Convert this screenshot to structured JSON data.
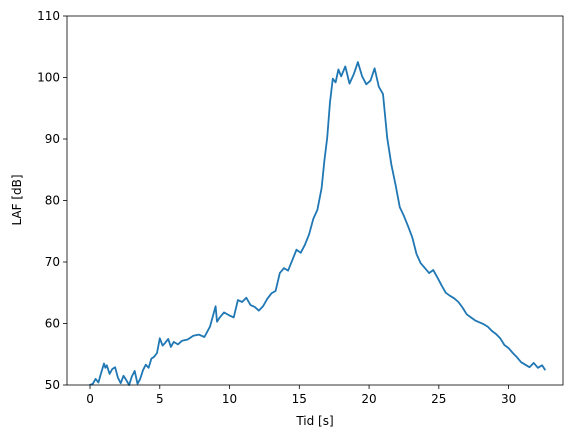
{
  "chart_data": {
    "type": "line",
    "xlabel": "Tid [s]",
    "ylabel": "LAF [dB]",
    "xlim": [
      -1.65,
      33.9
    ],
    "ylim": [
      50,
      110
    ],
    "xticks": [
      0,
      5,
      10,
      15,
      20,
      25,
      30
    ],
    "yticks": [
      50,
      60,
      70,
      80,
      90,
      100,
      110
    ],
    "grid": false,
    "line_color": "#1f77b4",
    "series": [
      {
        "x": [
          0,
          0.2,
          0.4,
          0.6,
          0.8,
          1.0,
          1.1,
          1.2,
          1.4,
          1.6,
          1.8,
          2.0,
          2.2,
          2.4,
          2.6,
          2.8,
          3.0,
          3.2,
          3.4,
          3.6,
          3.8,
          4.0,
          4.2,
          4.4,
          4.6,
          4.8,
          5.0,
          5.2,
          5.4,
          5.6,
          5.8,
          6.0,
          6.3,
          6.6,
          7.0,
          7.4,
          7.8,
          8.2,
          8.6,
          9.0,
          9.1,
          9.3,
          9.6,
          10.0,
          10.3,
          10.6,
          10.9,
          11.2,
          11.5,
          11.8,
          12.1,
          12.4,
          12.7,
          13.0,
          13.3,
          13.6,
          13.9,
          14.2,
          14.5,
          14.8,
          15.1,
          15.4,
          15.7,
          16.0,
          16.3,
          16.6,
          16.8,
          17.0,
          17.2,
          17.4,
          17.6,
          17.8,
          18.0,
          18.3,
          18.6,
          18.9,
          19.2,
          19.5,
          19.8,
          20.1,
          20.4,
          20.7,
          21.0,
          21.3,
          21.6,
          21.9,
          22.2,
          22.5,
          22.8,
          23.1,
          23.4,
          23.7,
          24.0,
          24.3,
          24.6,
          24.9,
          25.2,
          25.5,
          25.8,
          26.1,
          26.4,
          26.7,
          27.0,
          27.3,
          27.6,
          27.9,
          28.2,
          28.5,
          28.8,
          29.1,
          29.4,
          29.7,
          30.0,
          30.3,
          30.6,
          30.9,
          31.2,
          31.5,
          31.8,
          32.1,
          32.4,
          32.6
        ],
        "y": [
          49.5,
          50.2,
          51.0,
          50.4,
          52.0,
          53.5,
          52.8,
          53.2,
          51.8,
          52.6,
          52.9,
          51.2,
          50.3,
          51.5,
          50.8,
          49.6,
          51.4,
          52.3,
          50.2,
          51.0,
          52.4,
          53.3,
          52.8,
          54.3,
          54.6,
          55.2,
          57.6,
          56.4,
          56.9,
          57.5,
          56.2,
          57.0,
          56.6,
          57.2,
          57.4,
          58.0,
          58.2,
          57.8,
          59.5,
          62.8,
          60.3,
          61.0,
          61.8,
          61.3,
          61.0,
          63.8,
          63.5,
          64.2,
          63.0,
          62.7,
          62.1,
          62.8,
          64.0,
          64.9,
          65.3,
          68.2,
          69.0,
          68.6,
          70.3,
          72.0,
          71.5,
          72.8,
          74.5,
          77.0,
          78.5,
          82.0,
          86.5,
          90.2,
          96.0,
          99.8,
          99.2,
          101.3,
          100.2,
          101.8,
          99.0,
          100.5,
          102.5,
          100.2,
          98.9,
          99.5,
          101.5,
          98.5,
          97.3,
          90.2,
          85.8,
          82.5,
          78.9,
          77.5,
          75.8,
          74.0,
          71.3,
          69.8,
          69.0,
          68.2,
          68.7,
          67.5,
          66.2,
          65.0,
          64.5,
          64.1,
          63.5,
          62.6,
          61.5,
          61.0,
          60.5,
          60.2,
          59.9,
          59.5,
          58.8,
          58.3,
          57.6,
          56.5,
          56.0,
          55.2,
          54.5,
          53.7,
          53.3,
          52.9,
          53.6,
          52.8,
          53.2,
          52.5
        ]
      }
    ]
  }
}
